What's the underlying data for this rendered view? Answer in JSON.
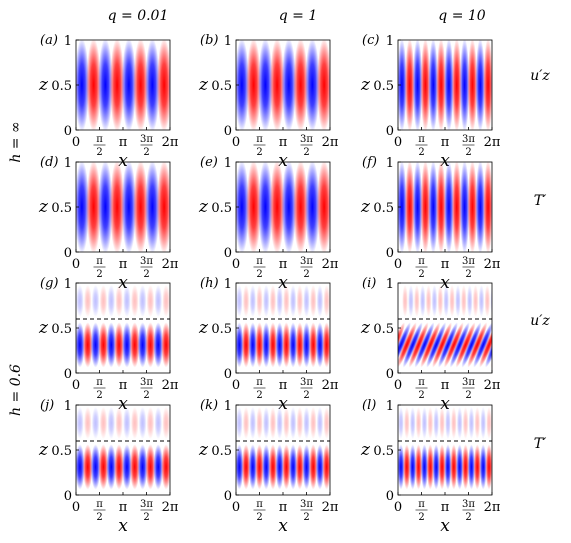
{
  "chart_data": {
    "type": "heatmap",
    "colormap": {
      "negative": "#0000ff",
      "zero": "#ffffff",
      "positive": "#ff0000"
    },
    "column_titles": [
      "q = 0.01",
      "q = 1",
      "q = 10"
    ],
    "row_group_labels": [
      "h = ∞",
      "h = 0.6"
    ],
    "row_variable_labels": [
      "u′z",
      "T′",
      "u′z",
      "T′"
    ],
    "xlabel": "x",
    "ylabel": "z",
    "xlim": [
      0,
      6.2832
    ],
    "ylim": [
      0,
      1
    ],
    "x_ticks": [
      "0",
      "π/2",
      "π",
      "3π/2",
      "2π"
    ],
    "y_ticks": [
      "0",
      "0.5",
      "1"
    ],
    "dashed_line_z": 0.6,
    "panels": [
      {
        "label": "(a)",
        "h": "∞",
        "q": 0.01,
        "field": "u′z",
        "wavelength_fraction": 0.25,
        "tilt": 0
      },
      {
        "label": "(b)",
        "h": "∞",
        "q": 1,
        "field": "u′z",
        "wavelength_fraction": 0.25,
        "tilt": 0
      },
      {
        "label": "(c)",
        "h": "∞",
        "q": 10,
        "field": "u′z",
        "wavelength_fraction": 0.1667,
        "tilt": 0
      },
      {
        "label": "(d)",
        "h": "∞",
        "q": 0.01,
        "field": "T′",
        "wavelength_fraction": 0.25,
        "tilt": 0
      },
      {
        "label": "(e)",
        "h": "∞",
        "q": 1,
        "field": "T′",
        "wavelength_fraction": 0.25,
        "tilt": 0
      },
      {
        "label": "(f)",
        "h": "∞",
        "q": 10,
        "field": "T′",
        "wavelength_fraction": 0.1667,
        "tilt": 0
      },
      {
        "label": "(g)",
        "h": "0.6",
        "q": 0.01,
        "field": "u′z",
        "wavelength_fraction": 0.1667,
        "tilt": 0
      },
      {
        "label": "(h)",
        "h": "0.6",
        "q": 1,
        "field": "u′z",
        "wavelength_fraction": 0.1429,
        "tilt": 0
      },
      {
        "label": "(i)",
        "h": "0.6",
        "q": 10,
        "field": "u′z",
        "wavelength_fraction": 0.125,
        "tilt": 1
      },
      {
        "label": "(j)",
        "h": "0.6",
        "q": 0.01,
        "field": "T′",
        "wavelength_fraction": 0.1667,
        "tilt": 0
      },
      {
        "label": "(k)",
        "h": "0.6",
        "q": 1,
        "field": "T′",
        "wavelength_fraction": 0.1429,
        "tilt": 0
      },
      {
        "label": "(l)",
        "h": "0.6",
        "q": 10,
        "field": "T′",
        "wavelength_fraction": 0.125,
        "tilt": 0
      }
    ]
  }
}
